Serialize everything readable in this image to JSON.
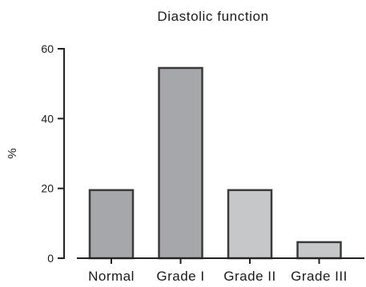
{
  "chart_data": {
    "type": "bar",
    "title": "Diastolic function",
    "xlabel": "",
    "ylabel": "%",
    "categories": [
      "Normal",
      "Grade I",
      "Grade II",
      "Grade III"
    ],
    "values": [
      19.5,
      54.5,
      19.5,
      4.6
    ],
    "bar_colors": [
      "#a6a7ab",
      "#a6a7ab",
      "#c6c7c9",
      "#c6c7c9"
    ],
    "ylim": [
      0,
      60
    ],
    "yticks": [
      0,
      20,
      40,
      60
    ],
    "grid": false,
    "legend": "none"
  }
}
